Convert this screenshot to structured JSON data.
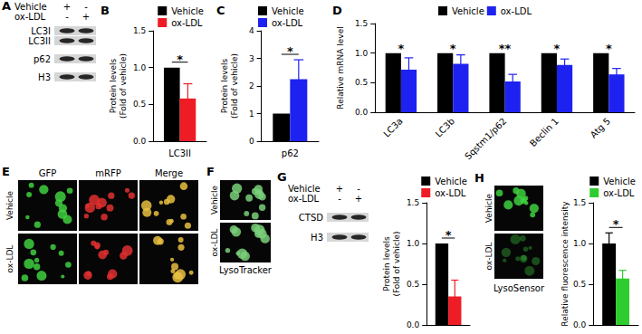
{
  "chart_data": [
    {
      "type": "bar",
      "panel": "B",
      "ylabel": "Protein levels\n(Fold of vehicle)",
      "categories": [
        "LC3II"
      ],
      "series": [
        {
          "name": "Vehicle",
          "color": "#000000",
          "values": [
            1.0
          ],
          "errors": [
            0
          ]
        },
        {
          "name": "ox-LDL",
          "color": "#ee1c25",
          "values": [
            0.58
          ],
          "errors": [
            0.2
          ]
        }
      ],
      "annotations": [
        "*"
      ],
      "ylim": [
        0,
        1.5
      ],
      "yticks": [
        {
          "value": 0,
          "label": "0.0"
        },
        0.5,
        {
          "value": 1,
          "label": "1.0"
        },
        1.5
      ],
      "grid": false,
      "legend": "upper right"
    },
    {
      "type": "bar",
      "panel": "C",
      "ylabel": "Protein levels\n(Fold of vehicle)",
      "categories": [
        "p62"
      ],
      "series": [
        {
          "name": "Vehicle",
          "color": "#000000",
          "values": [
            1.0
          ],
          "errors": [
            0
          ]
        },
        {
          "name": "ox-LDL",
          "color": "#1e22f0",
          "values": [
            2.25
          ],
          "errors": [
            0.7
          ]
        }
      ],
      "annotations": [
        "*"
      ],
      "ylim": [
        0,
        4
      ],
      "yticks": [
        0,
        1,
        2,
        3,
        4
      ],
      "grid": false,
      "legend": "upper left"
    },
    {
      "type": "bar",
      "panel": "D",
      "ylabel": "Relative mRNA level",
      "categories": [
        "LC3a",
        "LC3b",
        "Sqstm1/p62",
        "Beclin 1",
        "Atg 5"
      ],
      "series": [
        {
          "name": "Vehicle",
          "color": "#000000",
          "values": [
            1.0,
            1.0,
            1.0,
            1.0,
            1.0
          ],
          "errors": [
            0,
            0,
            0,
            0,
            0
          ]
        },
        {
          "name": "ox-LDL",
          "color": "#1e22f0",
          "values": [
            0.72,
            0.82,
            0.52,
            0.8,
            0.64
          ],
          "errors": [
            0.2,
            0.15,
            0.12,
            0.1,
            0.1
          ]
        }
      ],
      "annotations": [
        "*",
        "*",
        "**",
        "*",
        "*"
      ],
      "ylim": [
        0,
        1.5
      ],
      "yticks": [
        {
          "value": 0,
          "label": "0.0"
        },
        0.5,
        {
          "value": 1,
          "label": "1.0"
        },
        1.5
      ],
      "grid": false,
      "legend": "top"
    },
    {
      "type": "bar",
      "ylabel": "Protein levels\n(Fold of vehicle)",
      "categories": [
        null
      ],
      "series": [
        {
          "name": "Vehicle",
          "color": "#000000",
          "values": [
            1.0
          ],
          "errors": [
            0
          ]
        },
        {
          "name": "ox-LDL",
          "color": "#ee1c25",
          "values": [
            0.35
          ],
          "errors": [
            0.2
          ]
        }
      ],
      "annotations": [
        "*"
      ],
      "ylim": [
        0,
        1.5
      ],
      "yticks": [
        {
          "value": 0,
          "label": "0.0"
        },
        0.5,
        {
          "value": 1,
          "label": "1.0"
        },
        1.5
      ],
      "grid": false,
      "legend": "upper right"
    },
    {
      "type": "bar",
      "ylabel": "Relative fluorescence intensity",
      "categories": [
        null
      ],
      "series": [
        {
          "name": "Vehicle",
          "color": "#000000",
          "values": [
            1.0
          ],
          "errors": [
            0.13
          ]
        },
        {
          "name": "ox-LDL",
          "color": "#2ecc2e",
          "values": [
            0.57
          ],
          "errors": [
            0.1
          ]
        }
      ],
      "annotations": [
        "*"
      ],
      "ylim": [
        0,
        1.5
      ],
      "yticks": [
        {
          "value": 0,
          "label": "0.0"
        },
        0.5,
        {
          "value": 1,
          "label": "1.0"
        },
        1.5
      ],
      "grid": false,
      "legend": "upper right"
    }
  ],
  "blots": [
    {
      "panel": "A",
      "lanes": [
        {
          "label": "Vehicle",
          "signs": [
            "+",
            "-"
          ]
        },
        {
          "label": "ox-LDL",
          "signs": [
            "-",
            "+"
          ]
        }
      ],
      "bands": [
        "LC3I",
        "LC3II",
        "p62",
        "H3"
      ]
    },
    {
      "panel": "G",
      "lanes": [
        {
          "label": "Vehicle",
          "signs": [
            "+",
            "-"
          ]
        },
        {
          "label": "ox-LDL",
          "signs": [
            "-",
            "+"
          ]
        }
      ],
      "bands": [
        "CTSD",
        "H3"
      ]
    }
  ],
  "images": [
    {
      "panel": "E",
      "columns": [
        "GFP",
        "mRFP",
        "Merge"
      ],
      "rows": [
        "Vehicle",
        "ox-LDL"
      ]
    },
    {
      "panel": "F",
      "rows": [
        "Vehicle",
        "ox-LDL"
      ],
      "caption": "LysoTracker"
    },
    {
      "panel": "H",
      "rows": [
        "Vehicle",
        "ox-LDL"
      ],
      "caption": "LysoSensor"
    }
  ]
}
